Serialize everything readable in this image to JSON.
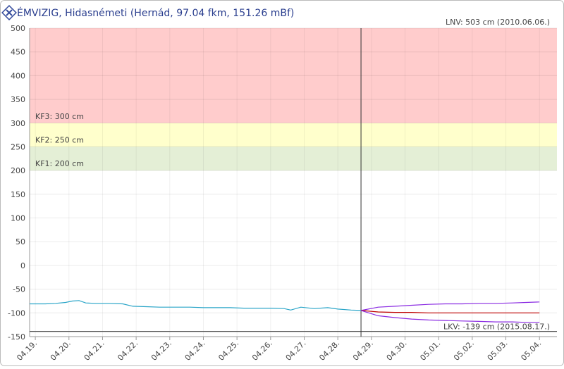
{
  "chart_data": {
    "type": "line",
    "title": "ÉMVIZIG, Hidasnémeti (Hernád, 97.04 fkm, 151.26 mBf)",
    "ylim": [
      -150,
      500
    ],
    "yticks": [
      -150,
      -100,
      -50,
      0,
      50,
      100,
      150,
      200,
      250,
      300,
      350,
      400,
      450,
      500
    ],
    "xlim": [
      -0.17,
      15.52
    ],
    "xticks": [
      {
        "value": 0,
        "label": "04.19."
      },
      {
        "value": 1,
        "label": "04.20."
      },
      {
        "value": 2,
        "label": "04.21."
      },
      {
        "value": 3,
        "label": "04.22."
      },
      {
        "value": 4,
        "label": "04.23."
      },
      {
        "value": 5,
        "label": "04.24."
      },
      {
        "value": 6,
        "label": "04.25."
      },
      {
        "value": 7,
        "label": "04.26."
      },
      {
        "value": 8,
        "label": "04.27."
      },
      {
        "value": 9,
        "label": "04.28."
      },
      {
        "value": 10,
        "label": "04.29."
      },
      {
        "value": 11,
        "label": "04.30."
      },
      {
        "value": 12,
        "label": "05.01."
      },
      {
        "value": 13,
        "label": "05.02."
      },
      {
        "value": 14,
        "label": "05.03."
      },
      {
        "value": 15,
        "label": "05.04."
      }
    ],
    "grid": true,
    "levels": [
      {
        "label": "KF1: 200 cm",
        "value": 200,
        "color": "#e4efd6"
      },
      {
        "label": "KF2: 250 cm",
        "value": 250,
        "color": "#ffffcc"
      },
      {
        "label": "KF3: 300 cm",
        "value": 300,
        "color": "#ffcccc"
      }
    ],
    "extremes": [
      {
        "label": "LNV: 503 cm (2010.06.06.)",
        "value": 503
      },
      {
        "label": "LKV: -139 cm (2015.08.17.)",
        "value": -139
      }
    ],
    "series": [
      {
        "color": "#2aa5c8",
        "x": [
          -0.17,
          0.3,
          0.6,
          0.9,
          1.1,
          1.3,
          1.5,
          1.8,
          2.2,
          2.6,
          2.9,
          3.3,
          3.7,
          4.2,
          4.6,
          5.0,
          5.4,
          5.8,
          6.2,
          6.6,
          7.0,
          7.4,
          7.6,
          7.9,
          8.3,
          8.7,
          9.0,
          9.4,
          9.69
        ],
        "values": [
          -81,
          -81,
          -80,
          -78,
          -75,
          -74,
          -79,
          -80,
          -80,
          -81,
          -86,
          -87,
          -88,
          -88,
          -88,
          -89,
          -89,
          -89,
          -90,
          -90,
          -90,
          -91,
          -94,
          -88,
          -91,
          -89,
          -92,
          -94,
          -95
        ]
      },
      {
        "color": "#8a2be2",
        "x": [
          9.69,
          10.2,
          10.7,
          11.2,
          11.7,
          12.2,
          12.7,
          13.2,
          13.7,
          14.2,
          14.6,
          15.0
        ],
        "values": [
          -95,
          -88,
          -86,
          -84,
          -82,
          -81,
          -81,
          -80,
          -80,
          -79,
          -78,
          -77
        ]
      },
      {
        "color": "#c00000",
        "x": [
          9.69,
          10.2,
          10.7,
          11.2,
          11.7,
          12.2,
          12.7,
          13.2,
          13.7,
          14.2,
          14.6,
          15.0
        ],
        "values": [
          -95,
          -98,
          -99,
          -99,
          -100,
          -100,
          -100,
          -100,
          -100,
          -100,
          -100,
          -100
        ]
      },
      {
        "color": "#8a2be2",
        "x": [
          9.69,
          10.2,
          10.7,
          11.2,
          11.7,
          12.2,
          12.7,
          13.2,
          13.7,
          14.2,
          14.6,
          15.0
        ],
        "values": [
          -95,
          -106,
          -110,
          -113,
          -115,
          -116,
          -117,
          -118,
          -119,
          -119,
          -120,
          -120
        ]
      }
    ]
  }
}
